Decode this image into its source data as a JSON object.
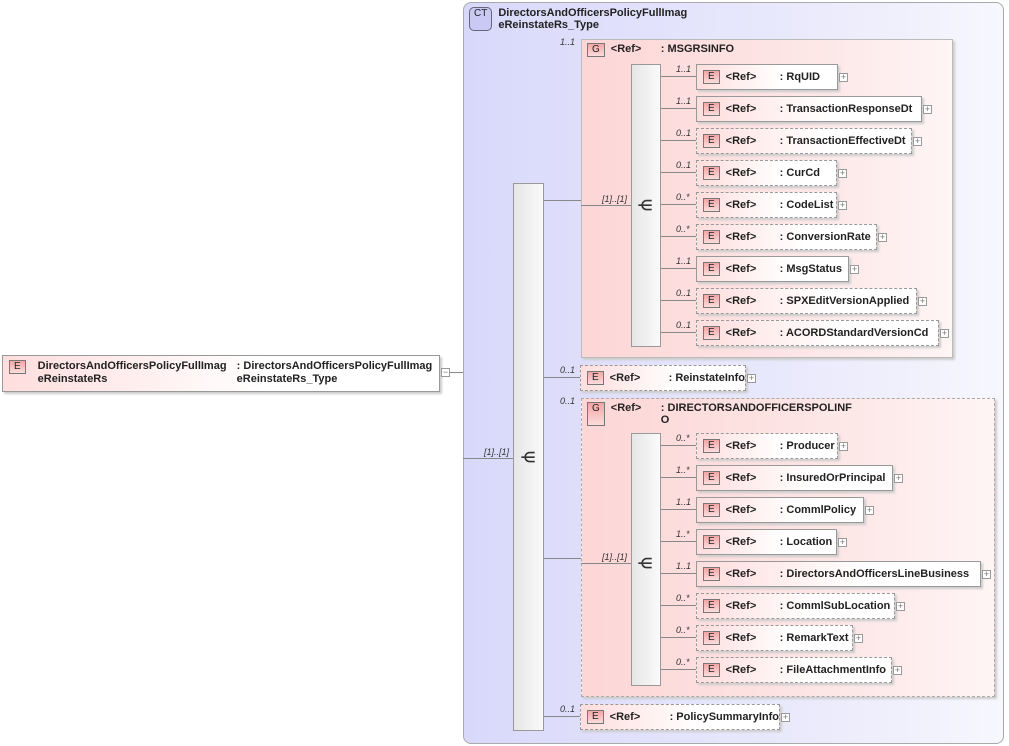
{
  "root": {
    "badge": "E",
    "name": "DirectorsAndOfficersPolicyFullImag eReinstateRs",
    "type": ": DirectorsAndOfficersPolicyFullImag eReinstateRs_Type",
    "collapse": "−"
  },
  "complex_type": {
    "badge": "CT",
    "name": "DirectorsAndOfficersPolicyFullImag eReinstateRs_Type"
  },
  "main_sequence": {
    "cardinality": "[1]..[1]"
  },
  "groups": [
    {
      "badge": "G",
      "ref": "<Ref>",
      "name": ": MSGRSINFO",
      "cardinality": "1..1",
      "seq_cardinality": "[1]..[1]",
      "optional": false,
      "children": [
        {
          "ref": "<Ref>",
          "name": ": RqUID",
          "card": "1..1"
        },
        {
          "ref": "<Ref>",
          "name": ": TransactionResponseDt",
          "card": "1..1"
        },
        {
          "ref": "<Ref>",
          "name": ": TransactionEffectiveDt",
          "card": "0..1"
        },
        {
          "ref": "<Ref>",
          "name": ": CurCd",
          "card": "0..1"
        },
        {
          "ref": "<Ref>",
          "name": ": CodeList",
          "card": "0..*"
        },
        {
          "ref": "<Ref>",
          "name": ": ConversionRate",
          "card": "0..*"
        },
        {
          "ref": "<Ref>",
          "name": ": MsgStatus",
          "card": "1..1"
        },
        {
          "ref": "<Ref>",
          "name": ": SPXEditVersionApplied",
          "card": "0..1"
        },
        {
          "ref": "<Ref>",
          "name": ": ACORDStandardVersionCd",
          "card": "0..1"
        }
      ]
    },
    {
      "badge": "G",
      "ref": "<Ref>",
      "name": ": DIRECTORSANDOFFICERSPOLINF O",
      "cardinality": "0..1",
      "seq_cardinality": "[1]..[1]",
      "optional": true,
      "children": [
        {
          "ref": "<Ref>",
          "name": ": Producer",
          "card": "0..*"
        },
        {
          "ref": "<Ref>",
          "name": ": InsuredOrPrincipal",
          "card": "1..*"
        },
        {
          "ref": "<Ref>",
          "name": ": CommlPolicy",
          "card": "1..1"
        },
        {
          "ref": "<Ref>",
          "name": ": Location",
          "card": "1..*"
        },
        {
          "ref": "<Ref>",
          "name": ": DirectorsAndOfficersLineBusiness",
          "card": "1..1"
        },
        {
          "ref": "<Ref>",
          "name": ": CommlSubLocation",
          "card": "0..*"
        },
        {
          "ref": "<Ref>",
          "name": ": RemarkText",
          "card": "0..*"
        },
        {
          "ref": "<Ref>",
          "name": ": FileAttachmentInfo",
          "card": "0..*"
        }
      ]
    }
  ],
  "direct_elements": [
    {
      "ref": "<Ref>",
      "name": ": ReinstateInfo",
      "card": "0..1"
    },
    {
      "ref": "<Ref>",
      "name": ": PolicySummaryInfo",
      "card": "0..1"
    }
  ],
  "expand_symbol": "+",
  "element_badge": "E"
}
